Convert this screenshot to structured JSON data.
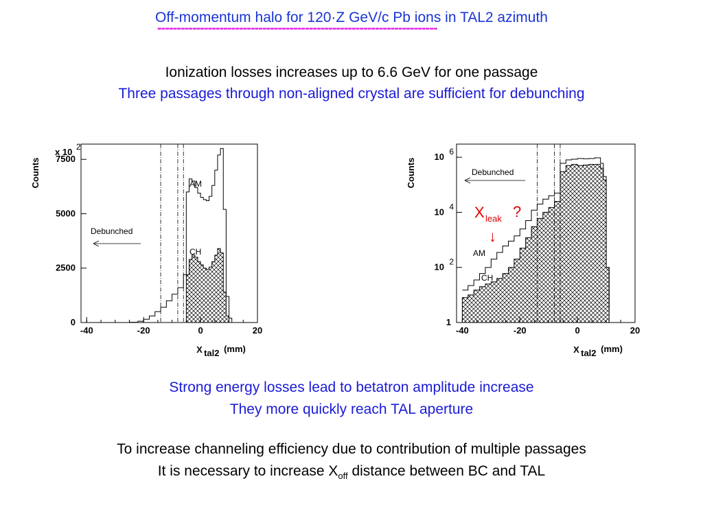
{
  "header": {
    "title": "Off-momentum halo for 120·Z GeV/c Pb ions in TAL2 azimuth",
    "underline": "------------------------------------------------------------------------"
  },
  "text": {
    "line1": "Ionization losses increases up to 6.6 GeV for one passage",
    "line2": "Three passages through non-aligned crystal are sufficient for debunching",
    "line3": "Strong energy losses lead to betatron amplitude increase",
    "line4": "They more quickly reach TAL aperture",
    "line5": "To increase channeling efficiency due to contribution of multiple passages",
    "line6_a": "It is necessary to increase X",
    "line6_sub": "off",
    "line6_b": " distance between BC and TAL"
  },
  "colors": {
    "title": "#1a34d6",
    "dashes": "#e21fe6",
    "blue_text": "#1a1ad6",
    "leak": "#e00000"
  },
  "chart_data": [
    {
      "type": "area",
      "scale": "linear",
      "ylabel": "Counts",
      "yexponent": "x 10",
      "yexponent_power": "2",
      "xlabel": "X",
      "xlabel_sub": "tal2",
      "xunit": "(mm)",
      "xlim": [
        -42,
        20
      ],
      "ylim": [
        0,
        8200
      ],
      "xticks": [
        "-40",
        "-20",
        "0",
        "20"
      ],
      "xtick_values": [
        -40,
        -20,
        0,
        20
      ],
      "yticks": [
        "0",
        "2500",
        "5000",
        "7500"
      ],
      "ytick_values": [
        0,
        2500,
        5000,
        7500
      ],
      "vlines": [
        -14,
        -8,
        -6
      ],
      "annotations": [
        "Debunched",
        "AM",
        "CH"
      ],
      "series": [
        {
          "name": "AM",
          "style": "step",
          "x": [
            -34,
            -25,
            -22,
            -20,
            -18,
            -16,
            -14,
            -12,
            -10,
            -8,
            -6,
            -5,
            -4,
            -3,
            -2,
            -1,
            0,
            1,
            2,
            3,
            4,
            5,
            6,
            7,
            8,
            9,
            10,
            11
          ],
          "y": [
            0,
            10,
            60,
            150,
            300,
            500,
            700,
            1000,
            1300,
            1600,
            2200,
            6000,
            6600,
            6500,
            6200,
            5950,
            5750,
            5650,
            5600,
            5800,
            6300,
            7000,
            7700,
            8000,
            5200,
            1200,
            200,
            0
          ]
        },
        {
          "name": "CH",
          "style": "hatched",
          "x": [
            -6,
            -5,
            -4,
            -3,
            -2,
            -1,
            0,
            1,
            2,
            3,
            4,
            5,
            6,
            7,
            8,
            9,
            10
          ],
          "y": [
            0,
            2200,
            2900,
            3100,
            3000,
            2800,
            2650,
            2500,
            2450,
            2550,
            2800,
            3100,
            3400,
            3200,
            1400,
            300,
            0
          ]
        }
      ]
    },
    {
      "type": "area",
      "scale": "log",
      "ylabel": "Counts",
      "xlabel": "X",
      "xlabel_sub": "tal2",
      "xunit": "(mm)",
      "xlim": [
        -42,
        20
      ],
      "ylim": [
        1,
        3000000
      ],
      "xticks": [
        "-40",
        "-20",
        "0",
        "20"
      ],
      "xtick_values": [
        -40,
        -20,
        0,
        20
      ],
      "yticks": [
        "1",
        "10",
        "10",
        "10"
      ],
      "ytick_powers": [
        "",
        "2",
        "4",
        "6"
      ],
      "ytick_values": [
        1,
        100,
        10000,
        1000000
      ],
      "vlines": [
        -14,
        -8,
        -6
      ],
      "annotations": [
        "Debunched",
        "AM",
        "CH",
        "X",
        "leak",
        "?",
        "↓"
      ],
      "series": [
        {
          "name": "AM",
          "style": "step",
          "x": [
            -40,
            -38,
            -36,
            -34,
            -32,
            -30,
            -28,
            -26,
            -24,
            -22,
            -20,
            -18,
            -16,
            -14,
            -12,
            -10,
            -8,
            -6,
            -4,
            -2,
            0,
            2,
            4,
            6,
            8,
            9,
            10,
            11
          ],
          "y": [
            15,
            22,
            35,
            60,
            100,
            200,
            350,
            600,
            900,
            1400,
            2500,
            5000,
            12000,
            20000,
            30000,
            40000,
            50000,
            600000,
            800000,
            850000,
            900000,
            880000,
            900000,
            950000,
            600000,
            200000,
            100,
            3
          ]
        },
        {
          "name": "CH",
          "style": "hatched",
          "x": [
            -40,
            -38,
            -36,
            -34,
            -32,
            -30,
            -28,
            -26,
            -24,
            -22,
            -20,
            -18,
            -16,
            -14,
            -12,
            -10,
            -8,
            -6,
            -4,
            -2,
            0,
            2,
            4,
            6,
            8,
            9,
            10,
            11
          ],
          "y": [
            8,
            10,
            15,
            20,
            25,
            30,
            40,
            60,
            100,
            200,
            500,
            1200,
            3000,
            6000,
            10000,
            15000,
            25000,
            300000,
            500000,
            550000,
            500000,
            520000,
            550000,
            550000,
            400000,
            150000,
            100,
            3
          ]
        }
      ]
    }
  ]
}
